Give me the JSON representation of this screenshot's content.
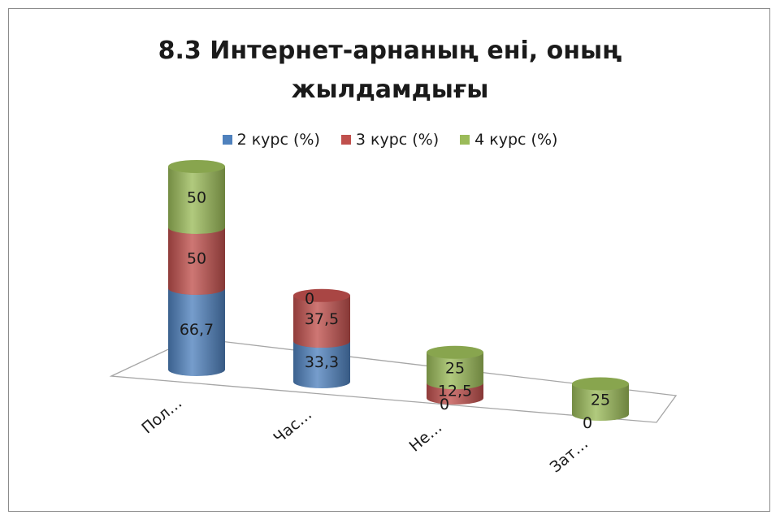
{
  "chart_data": {
    "type": "bar",
    "stacked": true,
    "style": "3d-cylinder",
    "title_lines": [
      "8.3 Интернет-арнаның ені, оның",
      "жылдамдығы"
    ],
    "categories": [
      "Пол…",
      "Час…",
      "Не…",
      "Зат…"
    ],
    "series": [
      {
        "name": "2 курс (%)",
        "color": "#4f81bd",
        "values": [
          66.7,
          33.3,
          0,
          0
        ],
        "labels": [
          "66,7",
          "33,3",
          "0",
          "0"
        ]
      },
      {
        "name": "3 курс (%)",
        "color": "#c0504d",
        "values": [
          50,
          37.5,
          12.5,
          0
        ],
        "labels": [
          "50",
          "37,5",
          "12,5",
          "0"
        ]
      },
      {
        "name": "4 курс (%)",
        "color": "#9bbb59",
        "values": [
          50,
          0,
          25,
          25
        ],
        "labels": [
          "50",
          "0",
          "25",
          "25"
        ]
      }
    ],
    "legend_position": "top",
    "grid": false
  }
}
